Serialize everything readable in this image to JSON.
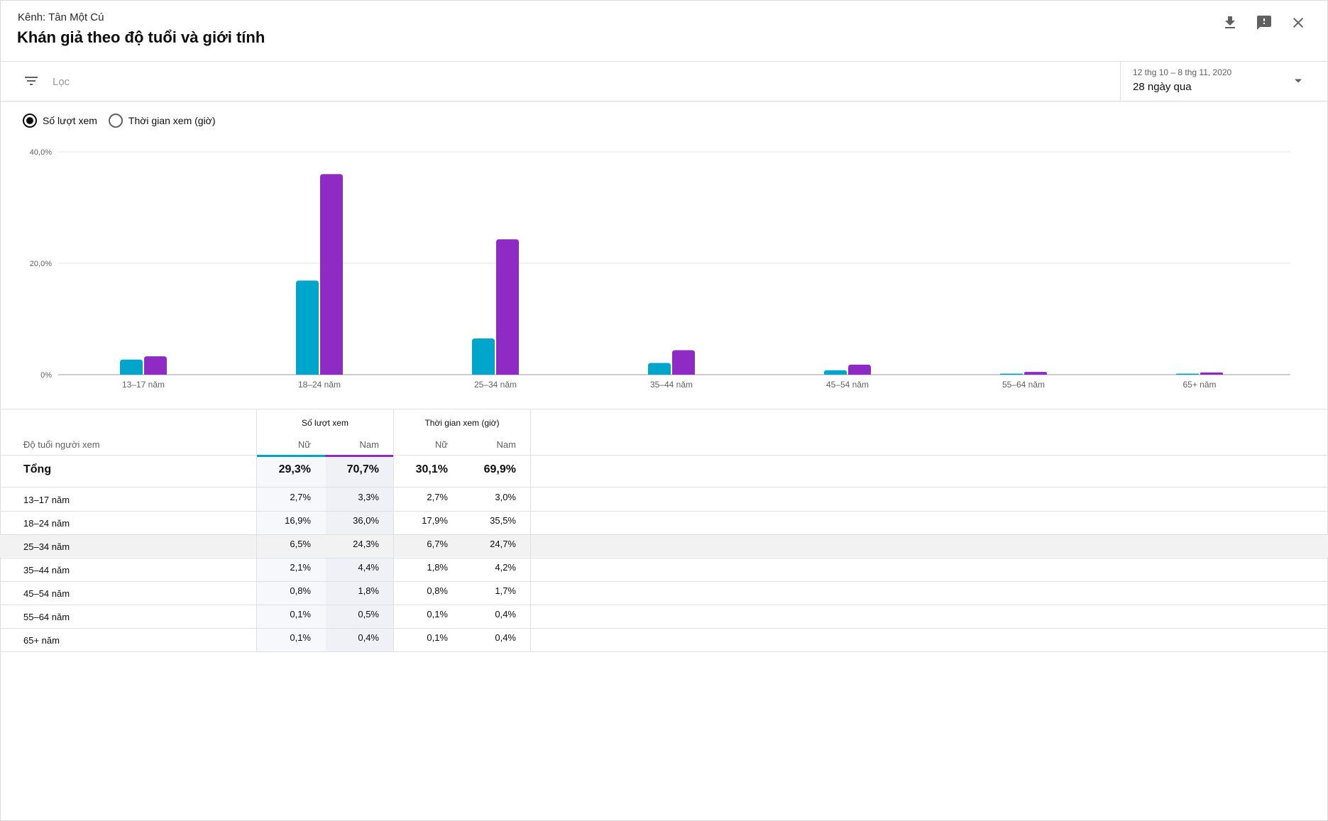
{
  "header": {
    "channel": "Kênh: Tân Một Cú",
    "title": "Khán giả theo độ tuổi và giới tính",
    "icons": [
      "download-icon",
      "feedback-icon",
      "close-icon"
    ]
  },
  "filter": {
    "placeholder": "Lọc",
    "date_range": "12 thg 10 – 8 thg 11, 2020",
    "period": "28 ngày qua"
  },
  "metric_toggle": {
    "options": [
      "Số lượt xem",
      "Thời gian xem (giờ)"
    ],
    "selected": 0
  },
  "colors": {
    "female": "#00a5cc",
    "male": "#8d2bc4",
    "grid": "#e5e5e5"
  },
  "chart_data": {
    "type": "bar",
    "categories": [
      "13–17 năm",
      "18–24 năm",
      "25–34 năm",
      "35–44 năm",
      "45–54 năm",
      "55–64 năm",
      "65+ năm"
    ],
    "series": [
      {
        "name": "Nữ",
        "values": [
          2.7,
          16.9,
          6.5,
          2.1,
          0.8,
          0.1,
          0.1
        ]
      },
      {
        "name": "Nam",
        "values": [
          3.3,
          36.0,
          24.3,
          4.4,
          1.8,
          0.5,
          0.4
        ]
      }
    ],
    "ylim": [
      0,
      40
    ],
    "yticks": [
      "0%",
      "20,0%",
      "40,0%"
    ],
    "grid": true
  },
  "table": {
    "dimension_header": "Độ tuổi người xem",
    "groups": [
      {
        "label": "Số lượt xem",
        "sub": [
          "Nữ",
          "Nam"
        ]
      },
      {
        "label": "Thời gian xem (giờ)",
        "sub": [
          "Nữ",
          "Nam"
        ]
      }
    ],
    "total": {
      "label": "Tổng",
      "values": [
        "29,3%",
        "70,7%",
        "30,1%",
        "69,9%"
      ]
    },
    "rows": [
      {
        "label": "13–17 năm",
        "values": [
          "2,7%",
          "3,3%",
          "2,7%",
          "3,0%"
        ]
      },
      {
        "label": "18–24 năm",
        "values": [
          "16,9%",
          "36,0%",
          "17,9%",
          "35,5%"
        ]
      },
      {
        "label": "25–34 năm",
        "values": [
          "6,5%",
          "24,3%",
          "6,7%",
          "24,7%"
        ]
      },
      {
        "label": "35–44 năm",
        "values": [
          "2,1%",
          "4,4%",
          "1,8%",
          "4,2%"
        ]
      },
      {
        "label": "45–54 năm",
        "values": [
          "0,8%",
          "1,8%",
          "0,8%",
          "1,7%"
        ]
      },
      {
        "label": "55–64 năm",
        "values": [
          "0,1%",
          "0,5%",
          "0,1%",
          "0,4%"
        ]
      },
      {
        "label": "65+ năm",
        "values": [
          "0,1%",
          "0,4%",
          "0,1%",
          "0,4%"
        ]
      }
    ]
  }
}
